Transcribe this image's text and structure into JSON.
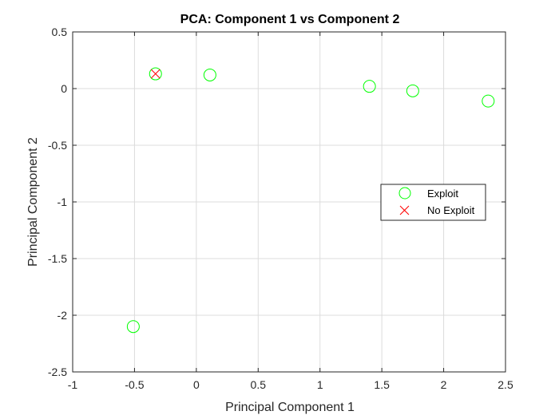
{
  "chart_data": {
    "type": "scatter",
    "title": "PCA: Component 1 vs Component 2",
    "xlabel": "Principal Component 1",
    "ylabel": "Principal Component 2",
    "xlim": [
      -1,
      2.5
    ],
    "ylim": [
      -2.5,
      0.5
    ],
    "xticks": [
      -1,
      -0.5,
      0,
      0.5,
      1,
      1.5,
      2,
      2.5
    ],
    "xtick_labels": [
      "-1",
      "-0.5",
      "0",
      "0.5",
      "1",
      "1.5",
      "2",
      "2.5"
    ],
    "yticks": [
      -2.5,
      -2,
      -1.5,
      -1,
      -0.5,
      0,
      0.5
    ],
    "ytick_labels": [
      "-2.5",
      "-2",
      "-1.5",
      "-1",
      "-0.5",
      "0",
      "0.5"
    ],
    "grid": true,
    "legend_position": "right",
    "series": [
      {
        "name": "Exploit",
        "marker": "circle",
        "color": "#00ff00",
        "points": [
          {
            "x": -0.33,
            "y": 0.13
          },
          {
            "x": 0.11,
            "y": 0.12
          },
          {
            "x": 1.4,
            "y": 0.02
          },
          {
            "x": 1.75,
            "y": -0.02
          },
          {
            "x": 2.36,
            "y": -0.11
          },
          {
            "x": -0.51,
            "y": -2.1
          }
        ]
      },
      {
        "name": "No Exploit",
        "marker": "x",
        "color": "#ff0000",
        "points": [
          {
            "x": -0.33,
            "y": 0.13
          }
        ]
      }
    ]
  }
}
